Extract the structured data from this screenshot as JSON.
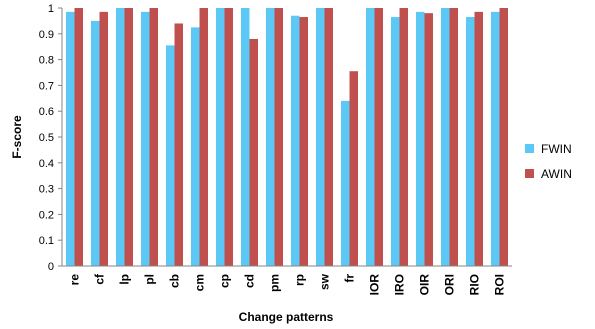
{
  "chart_data": {
    "type": "bar",
    "xlabel": "Change patterns",
    "ylabel": "F-score",
    "ylim": [
      0,
      1
    ],
    "yticks": [
      0,
      0.1,
      0.2,
      0.3,
      0.4,
      0.5,
      0.6,
      0.7,
      0.8,
      0.9,
      1
    ],
    "y_tick_labels": [
      "0",
      "0.1",
      "0.2",
      "0.3",
      "0.4",
      "0.5",
      "0.6",
      "0.7",
      "0.8",
      "0.9",
      "1"
    ],
    "grid": false,
    "legend_position": "right",
    "categories": [
      "re",
      "cf",
      "lp",
      "pl",
      "cb",
      "cm",
      "cp",
      "cd",
      "pm",
      "rp",
      "sw",
      "fr",
      "IOR",
      "IRO",
      "OIR",
      "ORI",
      "RIO",
      "ROI"
    ],
    "series": [
      {
        "name": "FWIN",
        "color": "#5bc8f5",
        "values": [
          0.985,
          0.95,
          1.0,
          0.985,
          0.855,
          0.925,
          1.0,
          1.0,
          1.0,
          0.97,
          1.0,
          0.64,
          1.0,
          0.965,
          0.985,
          1.0,
          0.965,
          0.985
        ]
      },
      {
        "name": "AWIN",
        "color": "#c0504d",
        "values": [
          1.0,
          0.985,
          1.0,
          1.0,
          0.94,
          1.0,
          1.0,
          0.88,
          1.0,
          0.965,
          1.0,
          0.755,
          1.0,
          1.0,
          0.98,
          1.0,
          0.985,
          1.0
        ]
      }
    ]
  }
}
